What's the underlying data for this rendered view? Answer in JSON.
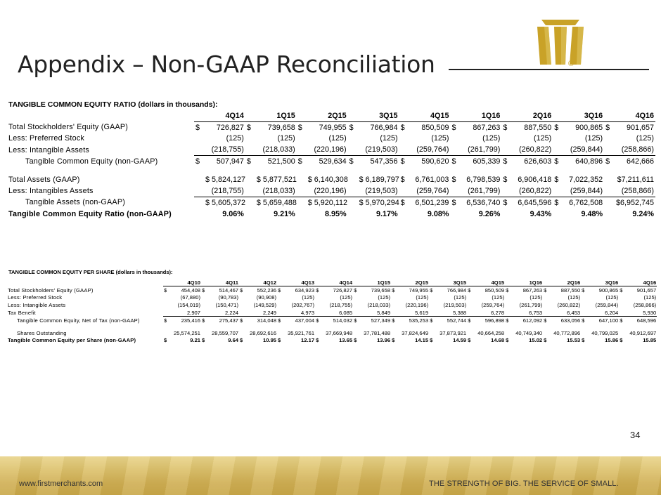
{
  "slide": {
    "title": "Appendix – Non-GAAP Reconciliation",
    "page_number": "34"
  },
  "logo": {
    "name": "bank-logo",
    "registered_mark": "®",
    "color": "#c9a227"
  },
  "footer": {
    "url": "www.firstmerchants.com",
    "tagline": "THE STRENGTH OF BIG. THE SERVICE OF SMALL."
  },
  "table1": {
    "heading": "TANGIBLE COMMON EQUITY RATIO  (dollars in thousands):",
    "columns": [
      "4Q14",
      "1Q15",
      "2Q15",
      "3Q15",
      "4Q15",
      "1Q16",
      "2Q16",
      "3Q16",
      "4Q16"
    ],
    "rows": [
      {
        "label": "Total Stockholders' Equity (GAAP)",
        "indent": false,
        "bold": false,
        "line": false,
        "cells": [
          [
            "$",
            "726,827"
          ],
          [
            "$",
            "739,658"
          ],
          [
            "$",
            "749,955"
          ],
          [
            "$",
            "766,984"
          ],
          [
            "$",
            "850,509"
          ],
          [
            "$",
            "867,263"
          ],
          [
            "$",
            "887,550"
          ],
          [
            "$",
            "900,865"
          ],
          [
            "$",
            "901,657"
          ]
        ]
      },
      {
        "label": "Less: Preferred Stock",
        "indent": false,
        "bold": false,
        "line": false,
        "cells": [
          [
            "",
            "(125)"
          ],
          [
            "",
            "(125)"
          ],
          [
            "",
            "(125)"
          ],
          [
            "",
            "(125)"
          ],
          [
            "",
            "(125)"
          ],
          [
            "",
            "(125)"
          ],
          [
            "",
            "(125)"
          ],
          [
            "",
            "(125)"
          ],
          [
            "",
            "(125)"
          ]
        ]
      },
      {
        "label": "Less: Intangible Assets",
        "indent": false,
        "bold": false,
        "line": true,
        "cells": [
          [
            "",
            "(218,755)"
          ],
          [
            "",
            "(218,033)"
          ],
          [
            "",
            "(220,196)"
          ],
          [
            "",
            "(219,503)"
          ],
          [
            "",
            "(259,764)"
          ],
          [
            "",
            "(261,799)"
          ],
          [
            "",
            "(260,822)"
          ],
          [
            "",
            "(259,844)"
          ],
          [
            "",
            "(258,866)"
          ]
        ]
      },
      {
        "label": "Tangible Common Equity (non-GAAP)",
        "indent": true,
        "bold": false,
        "line": false,
        "cells": [
          [
            "$",
            "507,947"
          ],
          [
            "$",
            "521,500"
          ],
          [
            "$",
            "529,634"
          ],
          [
            "$",
            "547,356"
          ],
          [
            "$",
            "590,620"
          ],
          [
            "$",
            "605,339"
          ],
          [
            "$",
            "626,603"
          ],
          [
            "$",
            "640,896"
          ],
          [
            "$",
            "642,666"
          ]
        ]
      },
      {
        "blank": true
      },
      {
        "label": "Total Assets (GAAP)",
        "indent": false,
        "bold": false,
        "line": false,
        "cells": [
          [
            "",
            "$ 5,824,127"
          ],
          [
            "",
            "$ 5,877,521"
          ],
          [
            "",
            "$ 6,140,308"
          ],
          [
            "",
            "$ 6,189,797"
          ],
          [
            "$",
            "6,761,003"
          ],
          [
            "$",
            "6,798,539"
          ],
          [
            "$",
            "6,906,418"
          ],
          [
            "$",
            "7,022,352"
          ],
          [
            "",
            "$7,211,611"
          ]
        ]
      },
      {
        "label": "Less: Intangibles Assets",
        "indent": false,
        "bold": false,
        "line": true,
        "cells": [
          [
            "",
            "(218,755)"
          ],
          [
            "",
            "(218,033)"
          ],
          [
            "",
            "(220,196)"
          ],
          [
            "",
            "(219,503)"
          ],
          [
            "",
            "(259,764)"
          ],
          [
            "",
            "(261,799)"
          ],
          [
            "",
            "(260,822)"
          ],
          [
            "",
            "(259,844)"
          ],
          [
            "",
            "(258,866)"
          ]
        ]
      },
      {
        "label": "Tangible Assets (non-GAAP)",
        "indent": true,
        "bold": false,
        "line": false,
        "cells": [
          [
            "",
            "$ 5,605,372"
          ],
          [
            "",
            "$ 5,659,488"
          ],
          [
            "",
            "$ 5,920,112"
          ],
          [
            "",
            "$ 5,970,294"
          ],
          [
            "$",
            "6,501,239"
          ],
          [
            "$",
            "6,536,740"
          ],
          [
            "$",
            "6,645,596"
          ],
          [
            "$",
            "6,762,508"
          ],
          [
            "",
            "$6,952,745"
          ]
        ]
      },
      {
        "label": "Tangible Common Equity Ratio (non-GAAP)",
        "indent": false,
        "bold": true,
        "line": false,
        "cells": [
          [
            "",
            "9.06%"
          ],
          [
            "",
            "9.21%"
          ],
          [
            "",
            "8.95%"
          ],
          [
            "",
            "9.17%"
          ],
          [
            "",
            "9.08%"
          ],
          [
            "",
            "9.26%"
          ],
          [
            "",
            "9.43%"
          ],
          [
            "",
            "9.48%"
          ],
          [
            "",
            "9.24%"
          ]
        ]
      }
    ]
  },
  "table2": {
    "heading": "TANGIBLE COMMON EQUITY PER SHARE (dollars in thousands):",
    "columns": [
      "4Q10",
      "4Q11",
      "4Q12",
      "4Q13",
      "4Q14",
      "1Q15",
      "2Q15",
      "3Q15",
      "4Q15",
      "1Q16",
      "2Q16",
      "3Q16",
      "4Q16"
    ],
    "rows": [
      {
        "label": "Total Stockholders' Equity (GAAP)",
        "indent": false,
        "bold": false,
        "line": false,
        "cells": [
          [
            "$",
            "454,408"
          ],
          [
            "$",
            "514,467"
          ],
          [
            "$",
            "552,236"
          ],
          [
            "$",
            "634,923"
          ],
          [
            "$",
            "726,827"
          ],
          [
            "$",
            "739,658"
          ],
          [
            "$",
            "749,955"
          ],
          [
            "$",
            "766,984"
          ],
          [
            "$",
            "850,509"
          ],
          [
            "$",
            "867,263"
          ],
          [
            "$",
            "887,550"
          ],
          [
            "$",
            "900,865"
          ],
          [
            "$",
            "901,657"
          ]
        ]
      },
      {
        "label": "Less: Preferred Stock",
        "indent": false,
        "bold": false,
        "line": false,
        "cells": [
          [
            "",
            "(67,880)"
          ],
          [
            "",
            "(90,783)"
          ],
          [
            "",
            "(90,908)"
          ],
          [
            "",
            "(125)"
          ],
          [
            "",
            "(125)"
          ],
          [
            "",
            "(125)"
          ],
          [
            "",
            "(125)"
          ],
          [
            "",
            "(125)"
          ],
          [
            "",
            "(125)"
          ],
          [
            "",
            "(125)"
          ],
          [
            "",
            "(125)"
          ],
          [
            "",
            "(125)"
          ],
          [
            "",
            "(125)"
          ]
        ]
      },
      {
        "label": "Less: Intangible Assets",
        "indent": false,
        "bold": false,
        "line": false,
        "cells": [
          [
            "",
            "(154,019)"
          ],
          [
            "",
            "(150,471)"
          ],
          [
            "",
            "(149,529)"
          ],
          [
            "",
            "(202,767)"
          ],
          [
            "",
            "(218,755)"
          ],
          [
            "",
            "(218,033)"
          ],
          [
            "",
            "(220,196)"
          ],
          [
            "",
            "(219,503)"
          ],
          [
            "",
            "(259,764)"
          ],
          [
            "",
            "(261,799)"
          ],
          [
            "",
            "(260,822)"
          ],
          [
            "",
            "(259,844)"
          ],
          [
            "",
            "(258,866)"
          ]
        ]
      },
      {
        "label": "Tax Benefit",
        "indent": false,
        "bold": false,
        "line": true,
        "cells": [
          [
            "",
            "2,907"
          ],
          [
            "",
            "2,224"
          ],
          [
            "",
            "2,249"
          ],
          [
            "",
            "4,973"
          ],
          [
            "",
            "6,085"
          ],
          [
            "",
            "5,849"
          ],
          [
            "",
            "5,619"
          ],
          [
            "",
            "5,388"
          ],
          [
            "",
            "6,278"
          ],
          [
            "",
            "6,753"
          ],
          [
            "",
            "6,453"
          ],
          [
            "",
            "6,204"
          ],
          [
            "",
            "5,930"
          ]
        ]
      },
      {
        "label": "Tangible Common Equity, Net of Tax (non-GAAP)",
        "indent": true,
        "bold": false,
        "line": false,
        "cells": [
          [
            "$",
            "235,416"
          ],
          [
            "$",
            "275,437"
          ],
          [
            "$",
            "314,048"
          ],
          [
            "$",
            "437,004"
          ],
          [
            "$",
            "514,032"
          ],
          [
            "$",
            "527,349"
          ],
          [
            "$",
            "535,253"
          ],
          [
            "$",
            "552,744"
          ],
          [
            "$",
            "596,898"
          ],
          [
            "$",
            "612,092"
          ],
          [
            "$",
            "633,056"
          ],
          [
            "$",
            "647,100"
          ],
          [
            "$",
            "648,596"
          ]
        ]
      },
      {
        "blank": true
      },
      {
        "label": "Shares Outstanding",
        "indent": true,
        "bold": false,
        "line": false,
        "cells": [
          [
            "",
            "25,574,251"
          ],
          [
            "",
            "28,559,707"
          ],
          [
            "",
            "28,692,616"
          ],
          [
            "",
            "35,921,761"
          ],
          [
            "",
            "37,669,948"
          ],
          [
            "",
            "37,781,488"
          ],
          [
            "",
            "37,824,649"
          ],
          [
            "",
            "37,873,921"
          ],
          [
            "",
            "40,664,258"
          ],
          [
            "",
            "40,749,340"
          ],
          [
            "",
            "40,772,896"
          ],
          [
            "",
            "40,799,025"
          ],
          [
            "",
            "40,912,697"
          ]
        ]
      },
      {
        "label": "Tangible Common Equity per Share (non-GAAP)",
        "indent": false,
        "bold": true,
        "line": false,
        "cells": [
          [
            "$",
            "9.21"
          ],
          [
            "$",
            "9.64"
          ],
          [
            "$",
            "10.95"
          ],
          [
            "$",
            "12.17"
          ],
          [
            "$",
            "13.65"
          ],
          [
            "$",
            "13.96"
          ],
          [
            "$",
            "14.15"
          ],
          [
            "$",
            "14.59"
          ],
          [
            "$",
            "14.68"
          ],
          [
            "$",
            "15.02"
          ],
          [
            "$",
            "15.53"
          ],
          [
            "$",
            "15.86"
          ],
          [
            "$",
            "15.85"
          ]
        ]
      }
    ]
  }
}
